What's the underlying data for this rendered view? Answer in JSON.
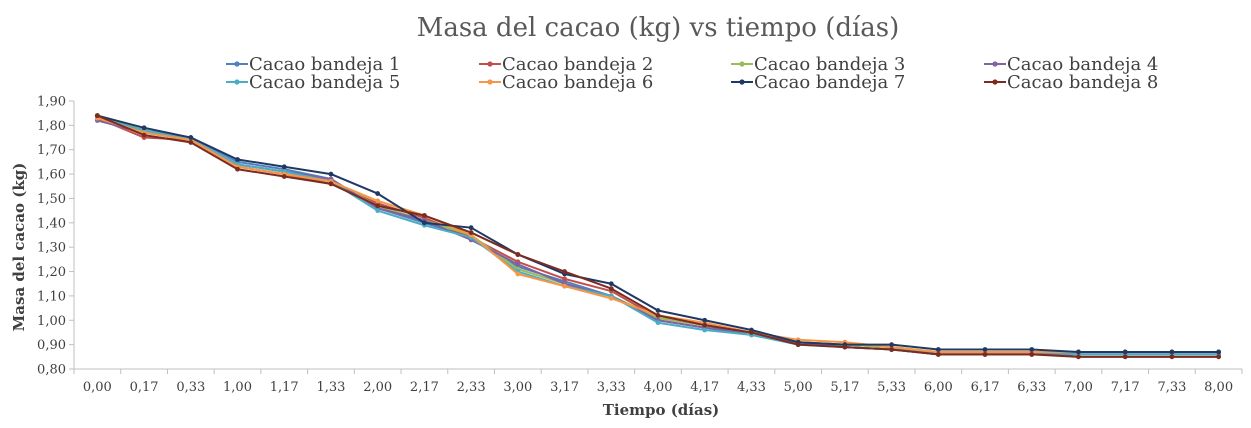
{
  "chart_data": {
    "type": "line",
    "title": "Masa del cacao (kg) vs tiempo (días)",
    "xlabel": "Tiempo (días)",
    "ylabel": "Masa del cacao (kg)",
    "ylim": [
      0.8,
      1.9
    ],
    "yticks": [
      "0,80",
      "0,90",
      "1,00",
      "1,10",
      "1,20",
      "1,30",
      "1,40",
      "1,50",
      "1,60",
      "1,70",
      "1,80",
      "1,90"
    ],
    "categories": [
      "0,00",
      "0,17",
      "0,33",
      "1,00",
      "1,17",
      "1,33",
      "2,00",
      "2,17",
      "2,33",
      "3,00",
      "3,17",
      "3,33",
      "4,00",
      "4,17",
      "4,33",
      "5,00",
      "5,17",
      "5,33",
      "6,00",
      "6,17",
      "6,33",
      "7,00",
      "7,17",
      "7,33",
      "8,00"
    ],
    "grid": false,
    "legend_position": "top",
    "series": [
      {
        "name": "Cacao bandeja 1",
        "color": "#4e81bd",
        "values": [
          1.83,
          1.78,
          1.75,
          1.65,
          1.62,
          1.58,
          1.46,
          1.4,
          1.34,
          1.22,
          1.16,
          1.1,
          1.0,
          0.97,
          0.94,
          0.91,
          0.89,
          0.88,
          0.86,
          0.86,
          0.86,
          0.86,
          0.86,
          0.86,
          0.86
        ]
      },
      {
        "name": "Cacao bandeja 2",
        "color": "#c0504d",
        "values": [
          1.83,
          1.75,
          1.74,
          1.63,
          1.6,
          1.56,
          1.48,
          1.42,
          1.34,
          1.24,
          1.17,
          1.12,
          1.01,
          0.98,
          0.95,
          0.91,
          0.9,
          0.89,
          0.86,
          0.86,
          0.86,
          0.86,
          0.86,
          0.86,
          0.86
        ]
      },
      {
        "name": "Cacao bandeja 3",
        "color": "#9bbb59",
        "values": [
          1.84,
          1.78,
          1.74,
          1.64,
          1.61,
          1.57,
          1.47,
          1.41,
          1.35,
          1.21,
          1.15,
          1.1,
          1.01,
          0.98,
          0.95,
          0.91,
          0.9,
          0.89,
          0.87,
          0.87,
          0.87,
          0.87,
          0.87,
          0.87,
          0.87
        ]
      },
      {
        "name": "Cacao bandeja 4",
        "color": "#7f63a2",
        "values": [
          1.82,
          1.77,
          1.74,
          1.64,
          1.61,
          1.58,
          1.46,
          1.41,
          1.33,
          1.23,
          1.15,
          1.1,
          1.0,
          0.97,
          0.95,
          0.91,
          0.89,
          0.88,
          0.86,
          0.86,
          0.86,
          0.86,
          0.86,
          0.86,
          0.86
        ]
      },
      {
        "name": "Cacao bandeja 5",
        "color": "#4bacc6",
        "values": [
          1.83,
          1.78,
          1.74,
          1.64,
          1.61,
          1.57,
          1.45,
          1.39,
          1.34,
          1.2,
          1.14,
          1.1,
          0.99,
          0.96,
          0.94,
          0.9,
          0.89,
          0.88,
          0.87,
          0.87,
          0.87,
          0.86,
          0.86,
          0.86,
          0.86
        ]
      },
      {
        "name": "Cacao bandeja 6",
        "color": "#f79646",
        "values": [
          1.83,
          1.77,
          1.74,
          1.63,
          1.6,
          1.57,
          1.49,
          1.43,
          1.35,
          1.19,
          1.14,
          1.09,
          1.02,
          0.99,
          0.95,
          0.92,
          0.91,
          0.89,
          0.87,
          0.87,
          0.87,
          0.87,
          0.87,
          0.87,
          0.87
        ]
      },
      {
        "name": "Cacao bandeja 7",
        "color": "#1f3864",
        "values": [
          1.84,
          1.79,
          1.75,
          1.66,
          1.63,
          1.6,
          1.52,
          1.4,
          1.38,
          1.27,
          1.19,
          1.15,
          1.04,
          1.0,
          0.96,
          0.91,
          0.9,
          0.9,
          0.88,
          0.88,
          0.88,
          0.87,
          0.87,
          0.87,
          0.87
        ]
      },
      {
        "name": "Cacao bandeja 8",
        "color": "#7b2c1f",
        "values": [
          1.84,
          1.76,
          1.73,
          1.62,
          1.59,
          1.56,
          1.47,
          1.43,
          1.36,
          1.27,
          1.2,
          1.13,
          1.02,
          0.98,
          0.95,
          0.9,
          0.89,
          0.88,
          0.86,
          0.86,
          0.86,
          0.85,
          0.85,
          0.85,
          0.85
        ]
      }
    ]
  }
}
